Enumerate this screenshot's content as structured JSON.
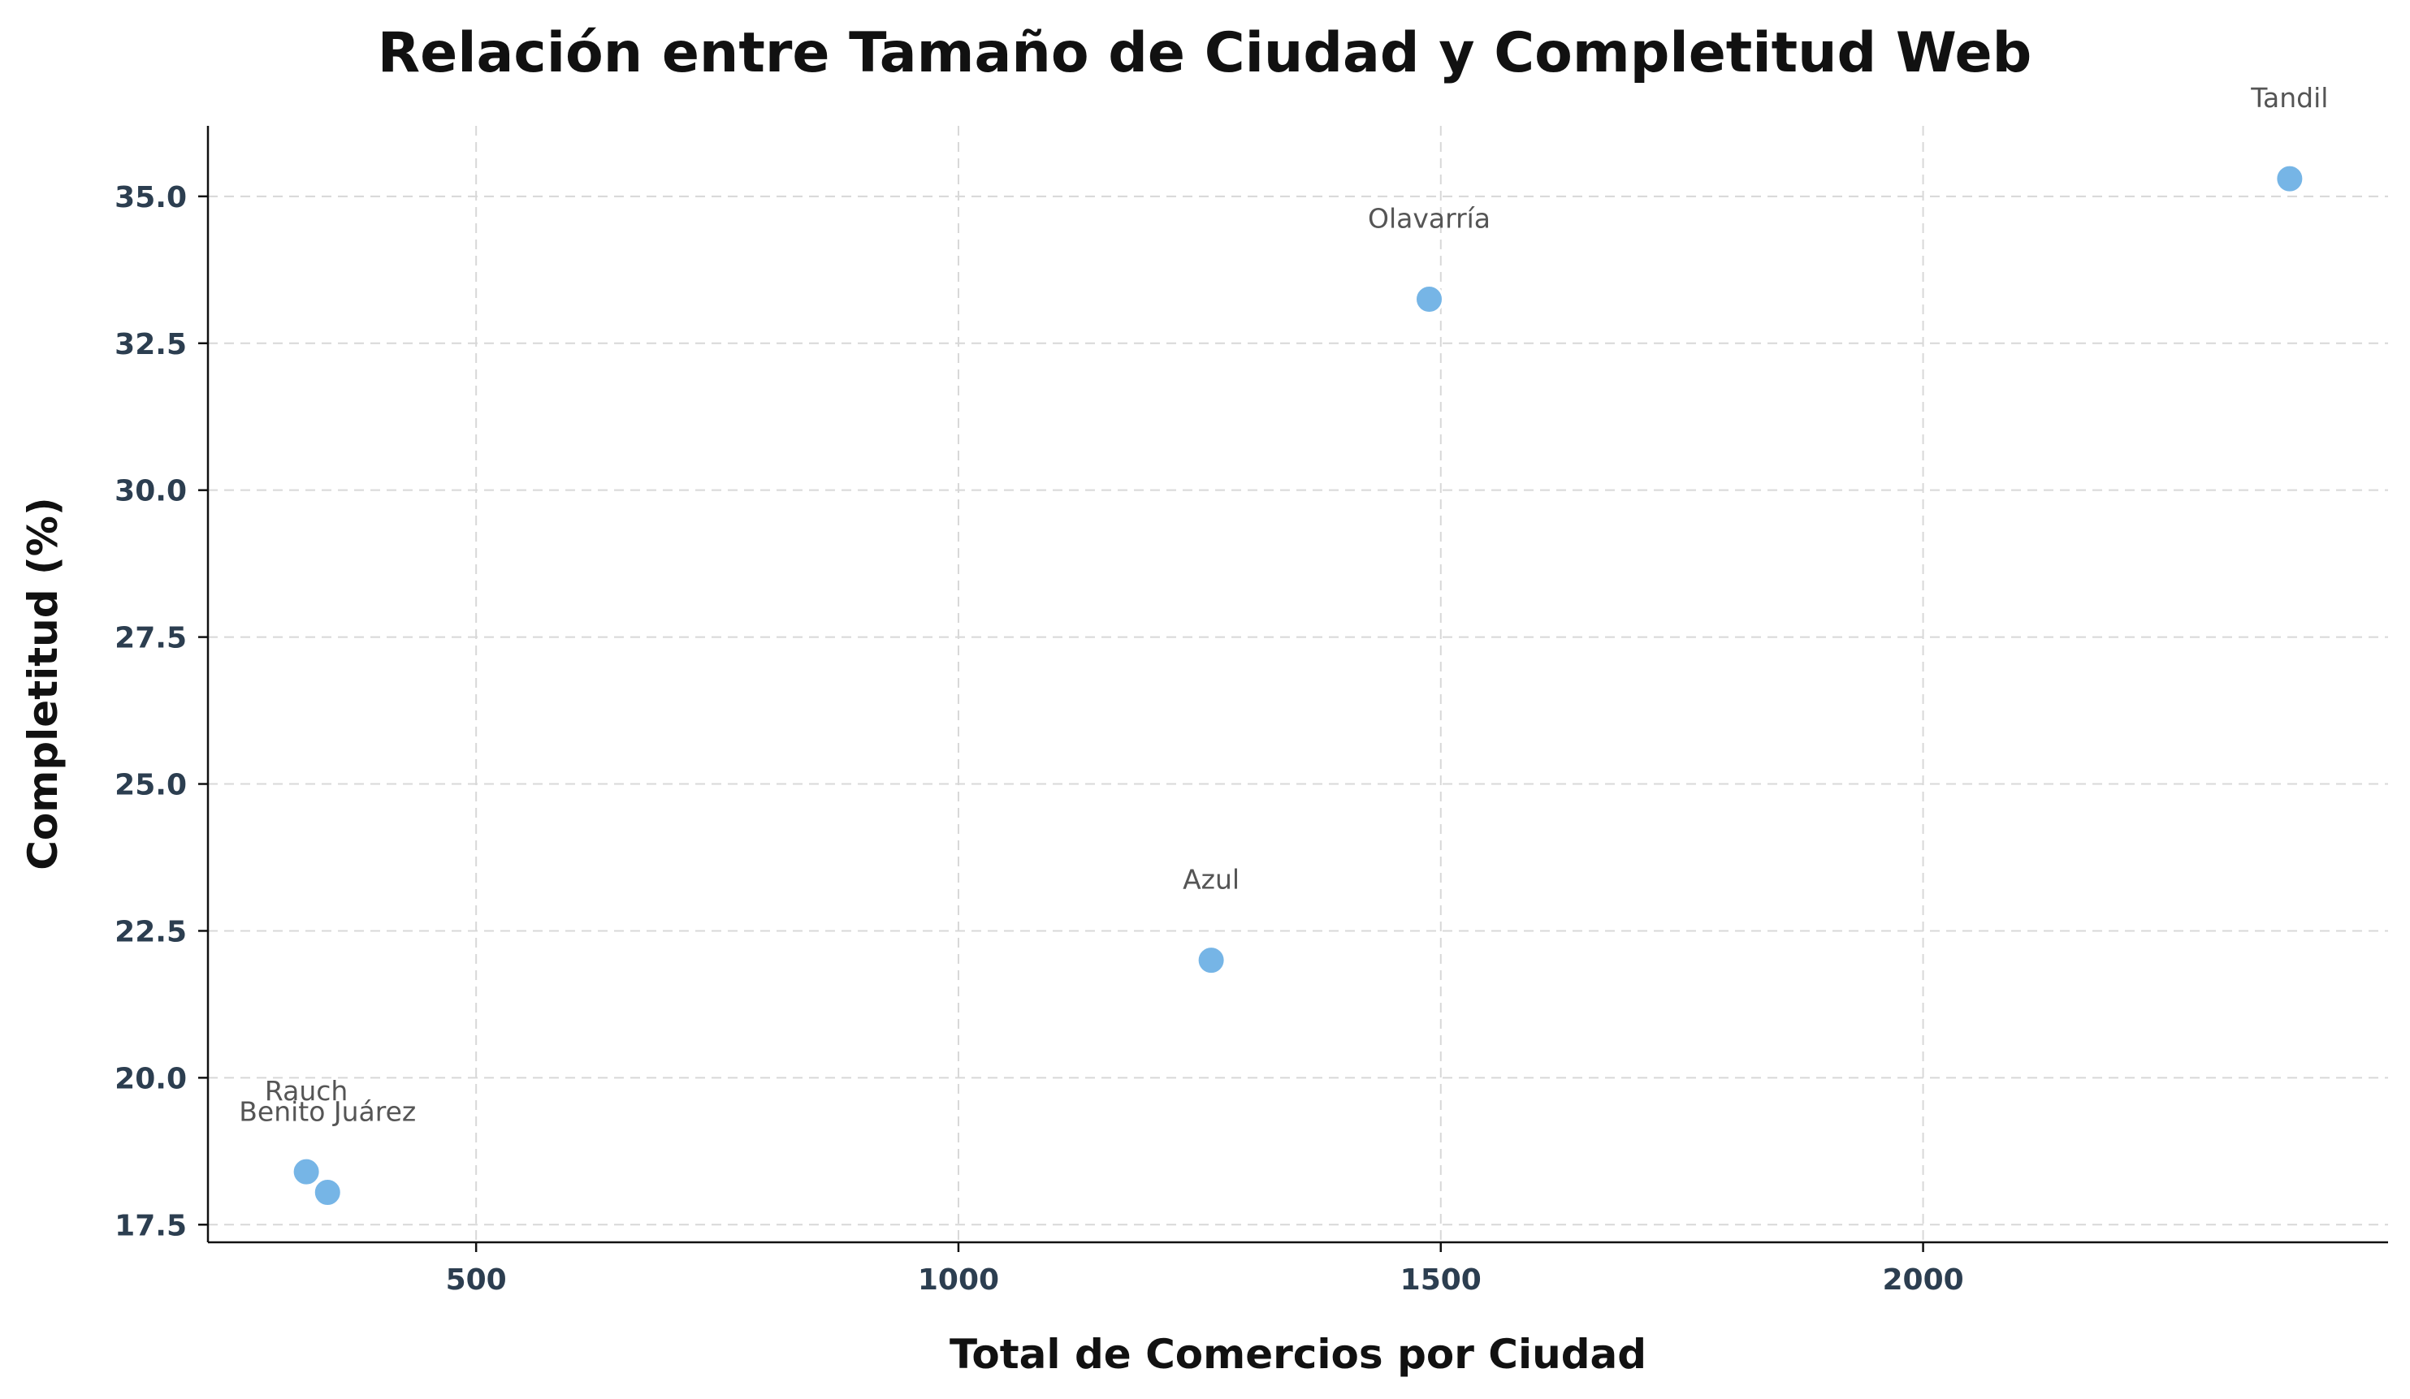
{
  "chart_data": {
    "type": "scatter",
    "title": "Relación entre Tamaño de Ciudad y Completitud Web",
    "xlabel": "Total de Comercios por Ciudad",
    "ylabel": "Completitud (%)",
    "xlim": [
      222,
      2482
    ],
    "ylim": [
      17.2,
      36.2
    ],
    "xticks": [
      500,
      1000,
      1500,
      2000
    ],
    "xtick_labels": [
      "500",
      "1000",
      "1500",
      "2000"
    ],
    "yticks": [
      17.5,
      20.0,
      22.5,
      25.0,
      27.5,
      30.0,
      32.5,
      35.0
    ],
    "ytick_labels": [
      "17.5",
      "20.0",
      "22.5",
      "25.0",
      "27.5",
      "30.0",
      "32.5",
      "35.0"
    ],
    "grid": true,
    "color": "#76b5e6",
    "points": [
      {
        "label": "Tandil",
        "x": 2380,
        "y": 35.3
      },
      {
        "label": "Olavarría",
        "x": 1488,
        "y": 33.25
      },
      {
        "label": "Azul",
        "x": 1262,
        "y": 22.0
      },
      {
        "label": "Rauch",
        "x": 324,
        "y": 18.4
      },
      {
        "label": "Benito Juárez",
        "x": 346,
        "y": 18.05
      }
    ]
  }
}
